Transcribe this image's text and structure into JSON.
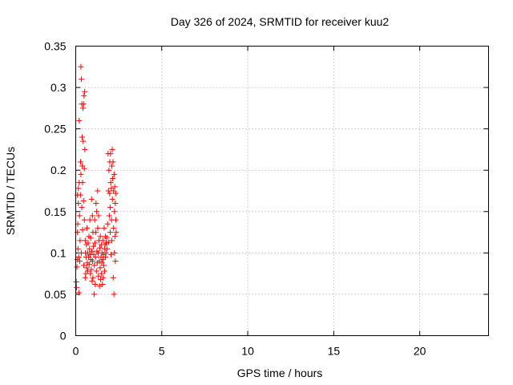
{
  "chart_data": {
    "type": "scatter",
    "title": "Day 326 of 2024, SRMTID for receiver kuu2",
    "xlabel": "GPS time / hours",
    "ylabel": "SRMTID / TECUs",
    "xlim": [
      0,
      24
    ],
    "ylim": [
      0,
      0.35
    ],
    "x_ticks": [
      0,
      5,
      10,
      15,
      20
    ],
    "x_tick_labels": [
      "0",
      "5",
      "10",
      "15",
      "20"
    ],
    "y_ticks": [
      0,
      0.05,
      0.1,
      0.15,
      0.2,
      0.25,
      0.3,
      0.35
    ],
    "y_tick_labels": [
      "0",
      "0.05",
      "0.1",
      "0.15",
      "0.2",
      "0.25",
      "0.3",
      "0.35"
    ],
    "grid": true,
    "marker": "plus",
    "color": "#ff0000",
    "series": [
      {
        "name": "SRMTID",
        "points": [
          [
            0.03,
            0.065
          ],
          [
            0.05,
            0.058
          ],
          [
            0.07,
            0.083
          ],
          [
            0.08,
            0.092
          ],
          [
            0.1,
            0.125
          ],
          [
            0.1,
            0.17
          ],
          [
            0.12,
            0.135
          ],
          [
            0.13,
            0.105
          ],
          [
            0.15,
            0.16
          ],
          [
            0.15,
            0.178
          ],
          [
            0.17,
            0.095
          ],
          [
            0.18,
            0.052
          ],
          [
            0.2,
            0.185
          ],
          [
            0.2,
            0.26
          ],
          [
            0.22,
            0.145
          ],
          [
            0.23,
            0.09
          ],
          [
            0.25,
            0.115
          ],
          [
            0.27,
            0.17
          ],
          [
            0.28,
            0.21
          ],
          [
            0.3,
            0.325
          ],
          [
            0.3,
            0.195
          ],
          [
            0.32,
            0.1
          ],
          [
            0.33,
            0.31
          ],
          [
            0.35,
            0.28
          ],
          [
            0.35,
            0.155
          ],
          [
            0.37,
            0.24
          ],
          [
            0.38,
            0.205
          ],
          [
            0.4,
            0.185
          ],
          [
            0.4,
            0.128
          ],
          [
            0.42,
            0.275
          ],
          [
            0.43,
            0.235
          ],
          [
            0.45,
            0.28
          ],
          [
            0.45,
            0.163
          ],
          [
            0.47,
            0.085
          ],
          [
            0.48,
            0.29
          ],
          [
            0.5,
            0.202
          ],
          [
            0.5,
            0.14
          ],
          [
            0.52,
            0.295
          ],
          [
            0.53,
            0.225
          ],
          [
            0.55,
            0.07
          ],
          [
            0.55,
            0.115
          ],
          [
            0.57,
            0.1
          ],
          [
            0.58,
            0.075
          ],
          [
            0.6,
            0.095
          ],
          [
            0.62,
            0.11
          ],
          [
            0.63,
            0.082
          ],
          [
            0.65,
            0.13
          ],
          [
            0.67,
            0.088
          ],
          [
            0.7,
            0.1
          ],
          [
            0.7,
            0.078
          ],
          [
            0.72,
            0.112
          ],
          [
            0.75,
            0.095
          ],
          [
            0.77,
            0.12
          ],
          [
            0.78,
            0.086
          ],
          [
            0.8,
            0.105
          ],
          [
            0.82,
            0.14
          ],
          [
            0.83,
            0.098
          ],
          [
            0.85,
            0.075
          ],
          [
            0.87,
            0.118
          ],
          [
            0.88,
            0.092
          ],
          [
            0.9,
            0.08
          ],
          [
            0.92,
            0.165
          ],
          [
            0.93,
            0.102
          ],
          [
            0.95,
            0.066
          ],
          [
            0.97,
            0.145
          ],
          [
            0.98,
            0.09
          ],
          [
            1.0,
            0.125
          ],
          [
            1.0,
            0.07
          ],
          [
            1.02,
            0.108
          ],
          [
            1.05,
            0.098
          ],
          [
            1.07,
            0.05
          ],
          [
            1.08,
            0.085
          ],
          [
            1.1,
            0.14
          ],
          [
            1.12,
            0.112
          ],
          [
            1.13,
            0.062
          ],
          [
            1.15,
            0.095
          ],
          [
            1.17,
            0.125
          ],
          [
            1.18,
            0.16
          ],
          [
            1.2,
            0.078
          ],
          [
            1.22,
            0.15
          ],
          [
            1.23,
            0.102
          ],
          [
            1.25,
            0.088
          ],
          [
            1.27,
            0.175
          ],
          [
            1.28,
            0.13
          ],
          [
            1.3,
            0.1
          ],
          [
            1.32,
            0.072
          ],
          [
            1.33,
            0.145
          ],
          [
            1.35,
            0.115
          ],
          [
            1.37,
            0.09
          ],
          [
            1.38,
            0.06
          ],
          [
            1.4,
            0.106
          ],
          [
            1.42,
            0.082
          ],
          [
            1.43,
            0.12
          ],
          [
            1.45,
            0.068
          ],
          [
            1.47,
            0.095
          ],
          [
            1.48,
            0.11
          ],
          [
            1.5,
            0.075
          ],
          [
            1.52,
            0.088
          ],
          [
            1.53,
            0.1
          ],
          [
            1.55,
            0.062
          ],
          [
            1.57,
            0.115
          ],
          [
            1.58,
            0.092
          ],
          [
            1.6,
            0.07
          ],
          [
            1.62,
            0.098
          ],
          [
            1.63,
            0.085
          ],
          [
            1.65,
            0.13
          ],
          [
            1.67,
            0.105
          ],
          [
            1.68,
            0.078
          ],
          [
            1.7,
            0.11
          ],
          [
            1.72,
            0.095
          ],
          [
            1.73,
            0.12
          ],
          [
            1.75,
            0.1
          ],
          [
            1.77,
            0.112
          ],
          [
            1.8,
            0.118
          ],
          [
            1.82,
            0.105
          ],
          [
            1.85,
            0.135
          ],
          [
            1.88,
            0.22
          ],
          [
            1.9,
            0.175
          ],
          [
            1.92,
            0.113
          ],
          [
            1.93,
            0.2
          ],
          [
            1.95,
            0.145
          ],
          [
            1.97,
            0.172
          ],
          [
            1.98,
            0.21
          ],
          [
            2.0,
            0.155
          ],
          [
            2.0,
            0.125
          ],
          [
            2.02,
            0.22
          ],
          [
            2.03,
            0.185
          ],
          [
            2.05,
            0.098
          ],
          [
            2.07,
            0.178
          ],
          [
            2.08,
            0.14
          ],
          [
            2.1,
            0.205
          ],
          [
            2.1,
            0.115
          ],
          [
            2.12,
            0.225
          ],
          [
            2.13,
            0.165
          ],
          [
            2.15,
            0.19
          ],
          [
            2.17,
            0.21
          ],
          [
            2.18,
            0.07
          ],
          [
            2.2,
            0.175
          ],
          [
            2.2,
            0.13
          ],
          [
            2.22,
            0.05
          ],
          [
            2.23,
            0.195
          ],
          [
            2.25,
            0.15
          ],
          [
            2.25,
            0.1
          ],
          [
            2.27,
            0.18
          ],
          [
            2.28,
            0.12
          ],
          [
            2.3,
            0.09
          ],
          [
            2.3,
            0.16
          ],
          [
            2.32,
            0.172
          ],
          [
            2.33,
            0.14
          ],
          [
            2.35,
            0.125
          ]
        ]
      }
    ]
  }
}
